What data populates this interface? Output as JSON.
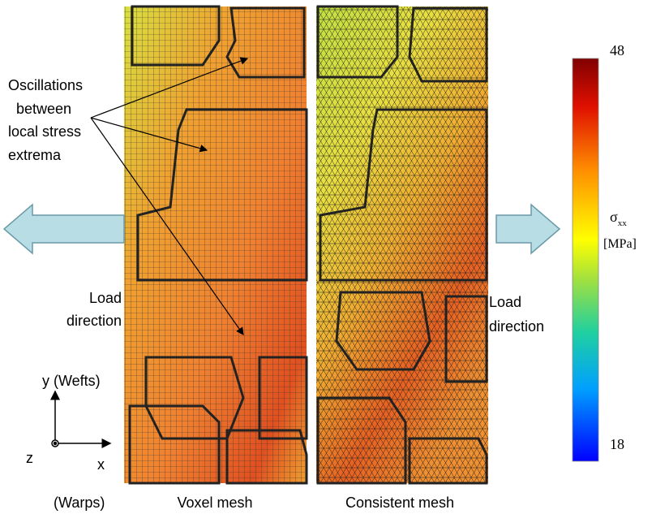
{
  "annotation": [
    "Oscillations",
    "between",
    "local stress",
    "extrema"
  ],
  "left_load": [
    "Load",
    "direction"
  ],
  "right_load": [
    "Load",
    "direction"
  ],
  "axes": {
    "y": "y (Wefts)",
    "z": "z",
    "x": "x",
    "x_note": "(Warps)"
  },
  "captions": {
    "voxel": "Voxel mesh",
    "consistent": "Consistent mesh"
  },
  "colorbar": {
    "symbol": "σ",
    "subscript": "xx",
    "unit": "[MPa]",
    "max": 48,
    "min": 18
  }
}
